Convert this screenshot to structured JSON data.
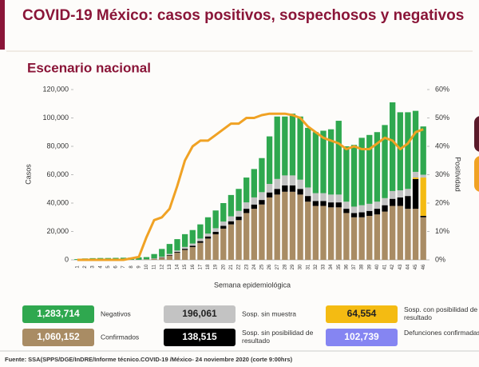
{
  "chart_data": {
    "type": "bar",
    "title": "COVID-19 México: casos positivos, sospechosos y negativos",
    "subtitle": "Escenario nacional",
    "y_label": "Casos",
    "y2_label": "Positividad",
    "x_label": "Semana epidemiológica",
    "source": "Fuente: SSA(SPPS/DGE/InDRE/Informe técnico.COVID-19 /México- 24 noviembre 2020 (corte 9:00hrs)",
    "stacked": true,
    "categories": [
      "1",
      "2",
      "3",
      "4",
      "5",
      "6",
      "7",
      "8",
      "9",
      "10",
      "11",
      "12",
      "13",
      "14",
      "15",
      "16",
      "17",
      "18",
      "19",
      "20",
      "21",
      "22",
      "23",
      "24",
      "25",
      "26",
      "27",
      "28",
      "29",
      "30",
      "31",
      "32",
      "33",
      "34",
      "35",
      "36",
      "37",
      "38",
      "39",
      "40",
      "41",
      "42",
      "43",
      "44",
      "45",
      "46"
    ],
    "series": [
      {
        "name": "Confirmados",
        "total": "1,060,152",
        "color": "#a98c64",
        "values": [
          0,
          0,
          0,
          0,
          0,
          0,
          0,
          0,
          100,
          300,
          700,
          1500,
          3000,
          5000,
          7000,
          9000,
          12000,
          15000,
          18000,
          22000,
          25000,
          28000,
          33000,
          36000,
          39000,
          44000,
          46000,
          48000,
          48000,
          46000,
          41000,
          38000,
          38000,
          37000,
          37000,
          33000,
          30000,
          30000,
          31000,
          32000,
          34000,
          38000,
          38000,
          36000,
          36000,
          30000
        ]
      },
      {
        "name": "Sosp. sin posibilidad de resultado",
        "total": "138,515",
        "color": "#000000",
        "values": [
          0,
          0,
          0,
          0,
          0,
          0,
          0,
          0,
          0,
          50,
          100,
          200,
          400,
          600,
          800,
          1000,
          1200,
          1500,
          1800,
          2000,
          2200,
          2500,
          3000,
          3000,
          3200,
          3500,
          4000,
          4500,
          4500,
          4000,
          4000,
          3500,
          3500,
          3500,
          3500,
          3000,
          3000,
          3500,
          3500,
          4000,
          4500,
          5000,
          6000,
          9000,
          21000,
          1000
        ]
      },
      {
        "name": "Sosp. con posibilidad de resultado",
        "total": "64,554",
        "color": "#f4bb12",
        "values": [
          0,
          0,
          0,
          0,
          0,
          0,
          0,
          0,
          0,
          0,
          0,
          0,
          0,
          0,
          0,
          0,
          0,
          0,
          0,
          0,
          0,
          0,
          0,
          0,
          0,
          0,
          0,
          0,
          0,
          0,
          0,
          0,
          0,
          0,
          0,
          0,
          0,
          0,
          0,
          0,
          0,
          0,
          0,
          0,
          1000,
          27000
        ]
      },
      {
        "name": "Sosp. sin muestra",
        "total": "196,061",
        "color": "#c3c3c3",
        "values": [
          0,
          0,
          0,
          0,
          0,
          0,
          0,
          0,
          0,
          100,
          300,
          500,
          800,
          1000,
          1300,
          1500,
          1800,
          2000,
          2500,
          3000,
          3500,
          4000,
          4500,
          5000,
          5500,
          6000,
          7000,
          7000,
          7000,
          6500,
          6000,
          5500,
          5500,
          5500,
          5500,
          5000,
          4500,
          5000,
          5000,
          5000,
          5000,
          5500,
          5000,
          5000,
          4000,
          2000
        ]
      },
      {
        "name": "Negativos",
        "total": "1,283,714",
        "color": "#2fa84f",
        "values": [
          500,
          1000,
          1200,
          1300,
          1300,
          1400,
          1500,
          1600,
          1700,
          1500,
          3000,
          5500,
          7000,
          8000,
          9000,
          9500,
          10000,
          11500,
          12500,
          13000,
          15000,
          15500,
          17500,
          20000,
          24000,
          33500,
          44000,
          41500,
          43500,
          44500,
          42000,
          43000,
          44000,
          46000,
          52000,
          39000,
          43500,
          47500,
          48500,
          49000,
          51500,
          62500,
          55000,
          54000,
          43000,
          34000
        ]
      }
    ],
    "line": {
      "axis": "y2",
      "color": "#f0a224",
      "values": [
        0,
        0,
        0,
        0,
        0,
        0,
        0,
        0.5,
        1,
        8,
        14,
        15,
        18,
        26,
        35,
        40,
        42,
        42,
        44,
        46,
        48,
        48,
        50,
        50,
        51,
        51.5,
        51.5,
        51.5,
        51,
        50,
        47,
        45,
        43,
        42,
        41,
        39,
        40,
        39,
        39,
        41,
        43,
        42,
        39,
        41,
        45,
        46
      ]
    },
    "deaths": {
      "name": "Defunciones confirmadas",
      "total": "102,739",
      "color": "#8585f2"
    },
    "ylim": [
      0,
      120000
    ],
    "yticks": [
      0,
      {
        "value": 20000,
        "label": "20,000"
      },
      {
        "value": 40000,
        "label": "40,000"
      },
      {
        "value": 60000,
        "label": "60,000"
      },
      {
        "value": 80000,
        "label": "80,000"
      },
      {
        "value": 100000,
        "label": "100,000"
      },
      {
        "value": 120000,
        "label": "120,000"
      }
    ],
    "y2lim": [
      0,
      60
    ],
    "y2ticks": [
      {
        "value": 0,
        "label": "0%"
      },
      {
        "value": 10,
        "label": "10%"
      },
      {
        "value": 20,
        "label": "20%"
      },
      {
        "value": 30,
        "label": "30%"
      },
      {
        "value": 40,
        "label": "40%"
      },
      {
        "value": 50,
        "label": "50%"
      },
      {
        "value": 60,
        "label": "60%"
      }
    ],
    "grid": false
  }
}
